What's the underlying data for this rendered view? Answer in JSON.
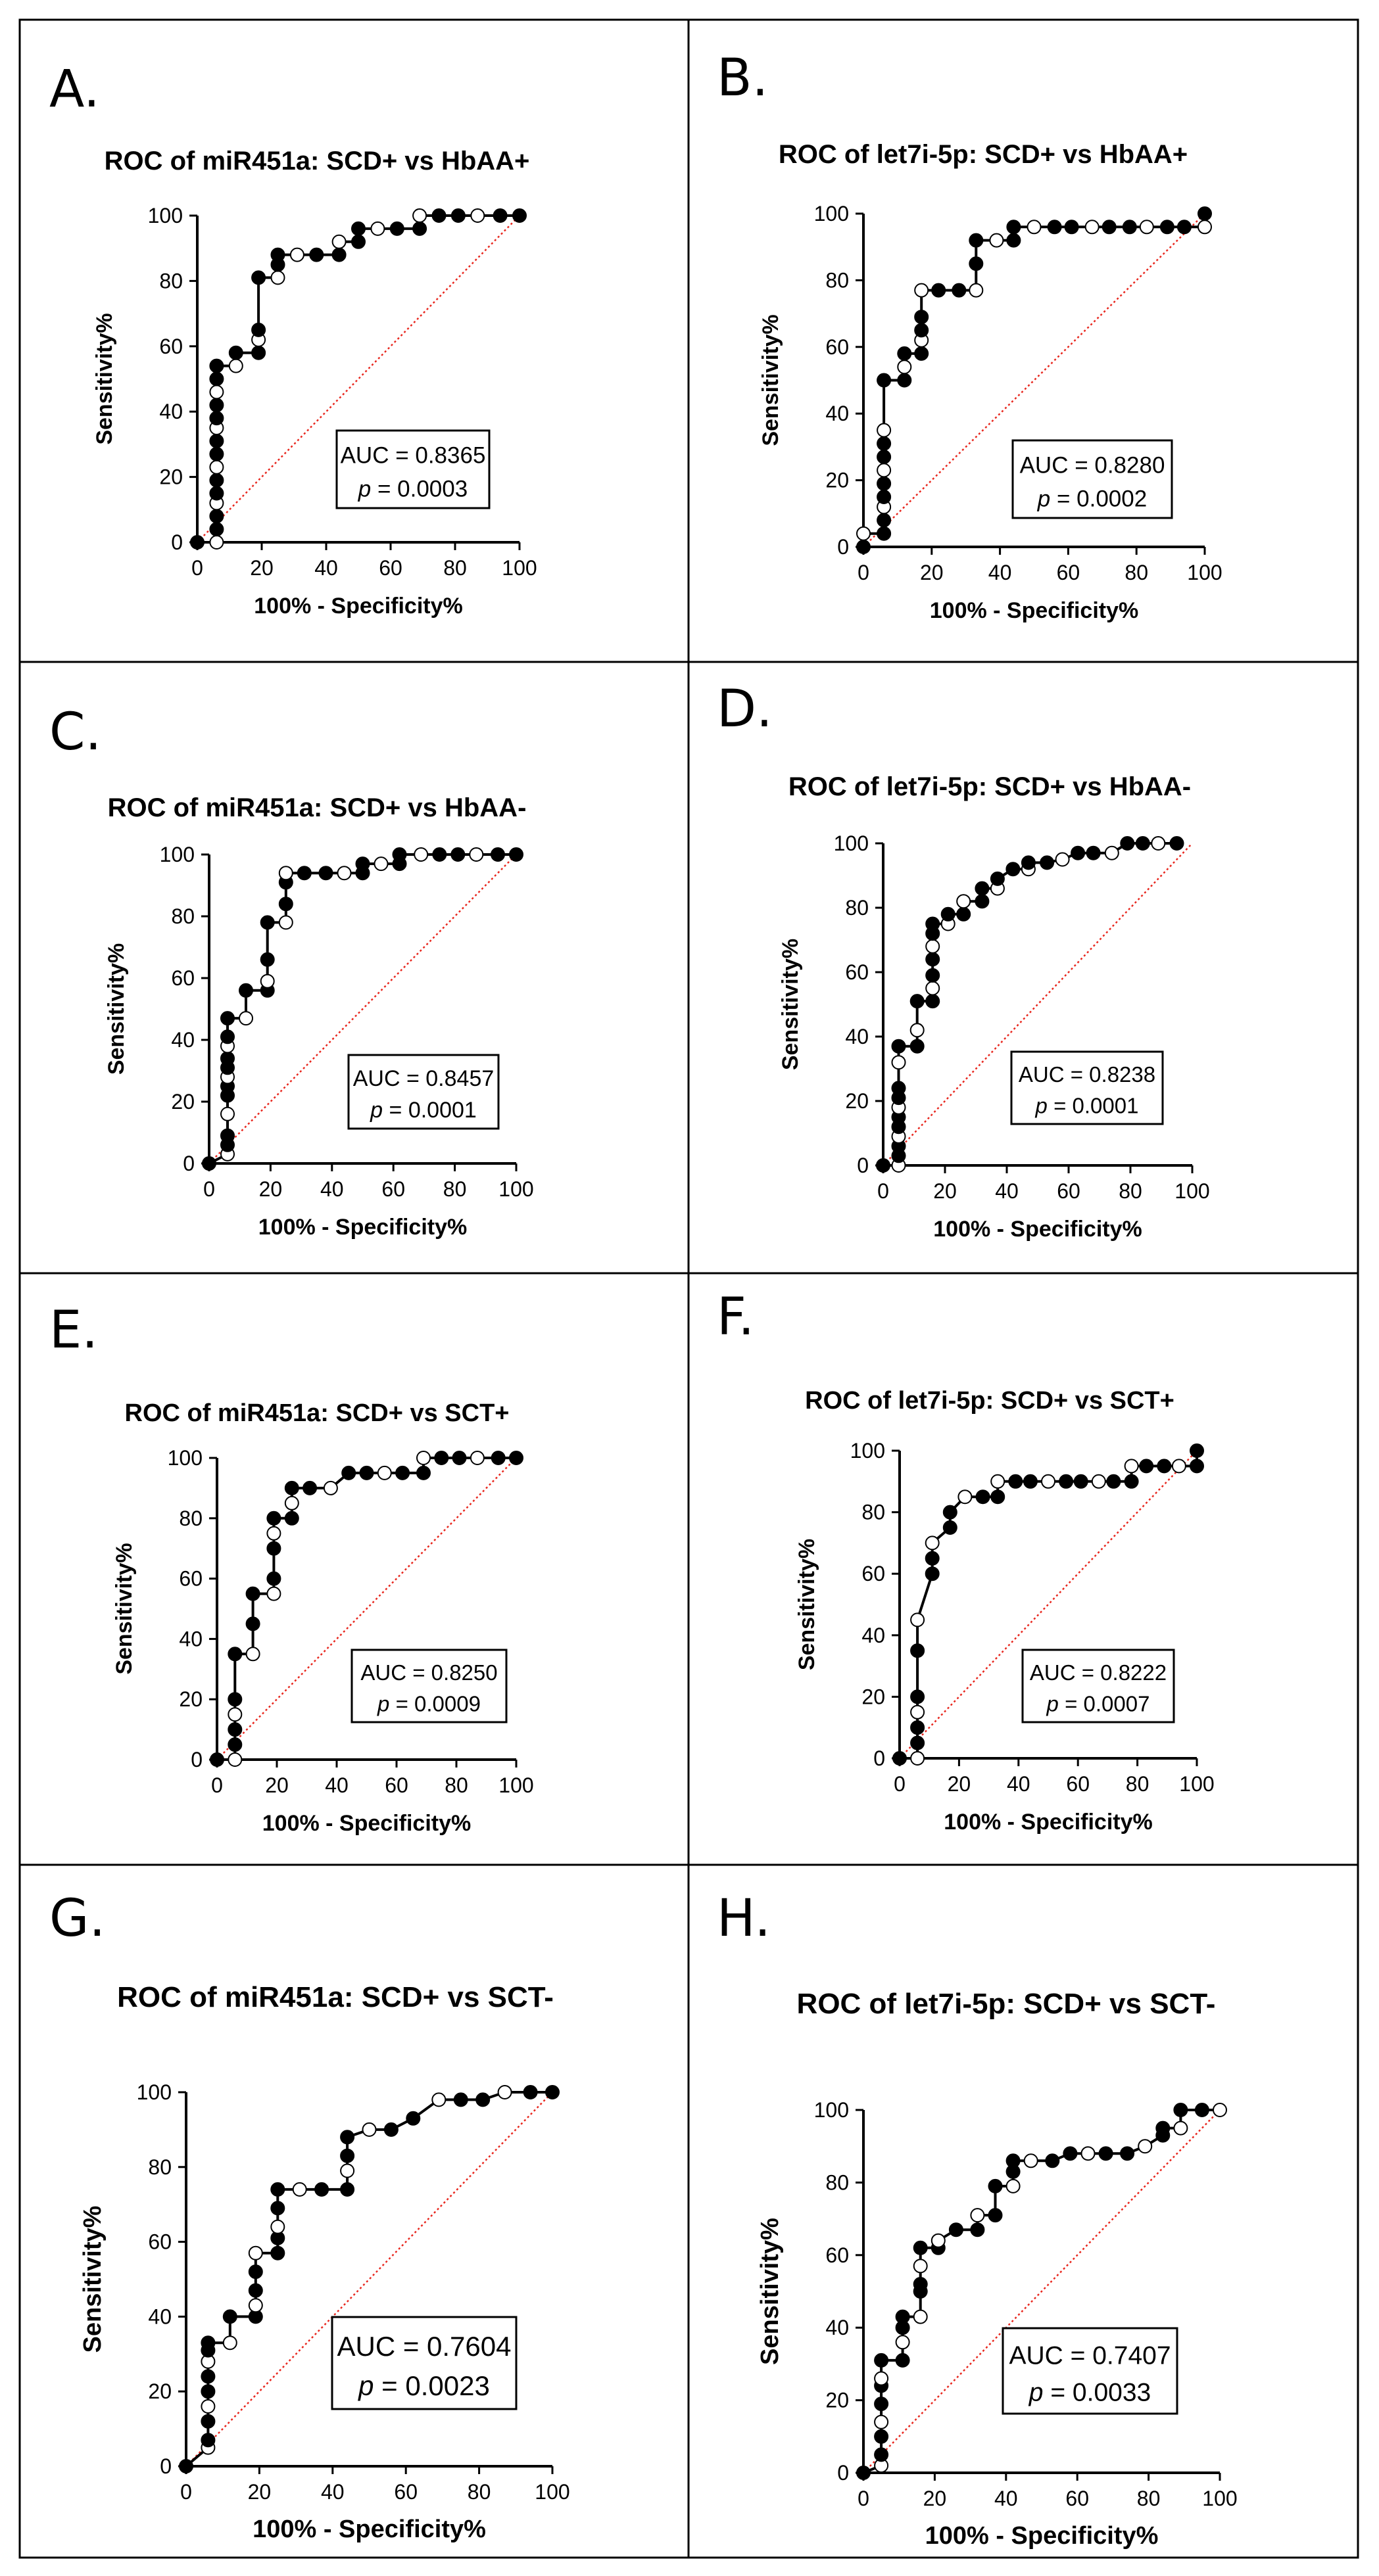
{
  "figure": {
    "x_label": "100% - Specificity%",
    "y_label": "Sensitivity%"
  },
  "chart_data": [
    {
      "type": "line",
      "panel": "A.",
      "title": "ROC of miR451a: SCD+ vs HbAA+",
      "xlabel": "100% - Specificity%",
      "ylabel": "Sensitivity%",
      "xlim": [
        0,
        100
      ],
      "ylim": [
        0,
        100
      ],
      "xticks": [
        0,
        20,
        40,
        60,
        80,
        100
      ],
      "yticks": [
        0,
        20,
        40,
        60,
        80,
        100
      ],
      "auc_text": "AUC = 0.8365",
      "p_label": "p",
      "p_value": "= 0.0003",
      "series": [
        {
          "name": "ROC curve",
          "x": [
            0,
            6,
            6,
            6,
            6,
            6,
            6,
            6,
            6,
            6,
            6,
            6,
            6,
            6,
            6,
            6,
            12,
            12,
            19,
            19,
            19,
            19,
            25,
            25,
            25,
            31,
            37,
            44,
            44,
            50,
            50,
            56,
            62,
            69,
            69,
            75,
            81,
            87,
            94,
            100
          ],
          "y": [
            0,
            0,
            4,
            8,
            12,
            15,
            19,
            23,
            27,
            31,
            35,
            38,
            42,
            46,
            50,
            54,
            54,
            58,
            58,
            62,
            65,
            81,
            81,
            85,
            88,
            88,
            88,
            88,
            92,
            92,
            96,
            96,
            96,
            96,
            100,
            100,
            100,
            100,
            100,
            100
          ]
        },
        {
          "name": "reference",
          "x": [
            0,
            100
          ],
          "y": [
            0,
            100
          ]
        }
      ]
    },
    {
      "type": "line",
      "panel": "B.",
      "title": "ROC of let7i-5p: SCD+ vs HbAA+",
      "xlabel": "100% - Specificity%",
      "ylabel": "Sensitivity%",
      "xlim": [
        0,
        100
      ],
      "ylim": [
        0,
        100
      ],
      "xticks": [
        0,
        20,
        40,
        60,
        80,
        100
      ],
      "yticks": [
        0,
        20,
        40,
        60,
        80,
        100
      ],
      "auc_text": "AUC = 0.8280",
      "p_label": "p",
      "p_value": "= 0.0002",
      "series": [
        {
          "name": "ROC curve",
          "x": [
            0,
            0,
            6,
            6,
            6,
            6,
            6,
            6,
            6,
            6,
            6,
            6,
            12,
            12,
            12,
            17,
            17,
            17,
            17,
            17,
            22,
            28,
            33,
            33,
            33,
            39,
            44,
            44,
            50,
            56,
            61,
            67,
            72,
            78,
            83,
            89,
            94,
            100,
            100
          ],
          "y": [
            0,
            4,
            4,
            8,
            12,
            15,
            19,
            23,
            27,
            31,
            35,
            50,
            50,
            54,
            58,
            58,
            62,
            65,
            69,
            77,
            77,
            77,
            77,
            85,
            92,
            92,
            92,
            96,
            96,
            96,
            96,
            96,
            96,
            96,
            96,
            96,
            96,
            96,
            100
          ]
        },
        {
          "name": "reference",
          "x": [
            0,
            100
          ],
          "y": [
            0,
            100
          ]
        }
      ]
    },
    {
      "type": "line",
      "panel": "C.",
      "title": "ROC of miR451a: SCD+ vs HbAA-",
      "xlabel": "100% - Specificity%",
      "ylabel": "Sensitivity%",
      "xlim": [
        0,
        100
      ],
      "ylim": [
        0,
        100
      ],
      "xticks": [
        0,
        20,
        40,
        60,
        80,
        100
      ],
      "yticks": [
        0,
        20,
        40,
        60,
        80,
        100
      ],
      "auc_text": "AUC = 0.8457",
      "p_label": "p",
      "p_value": "= 0.0001",
      "series": [
        {
          "name": "ROC curve",
          "x": [
            0,
            6,
            6,
            6,
            6,
            6,
            6,
            6,
            6,
            6,
            6,
            6,
            6,
            12,
            12,
            19,
            19,
            19,
            19,
            25,
            25,
            25,
            25,
            31,
            38,
            44,
            50,
            50,
            56,
            62,
            62,
            69,
            75,
            81,
            87,
            94,
            100
          ],
          "y": [
            0,
            3,
            6,
            9,
            16,
            22,
            25,
            28,
            31,
            34,
            38,
            41,
            47,
            47,
            56,
            56,
            59,
            66,
            78,
            78,
            84,
            91,
            94,
            94,
            94,
            94,
            94,
            97,
            97,
            97,
            100,
            100,
            100,
            100,
            100,
            100,
            100
          ]
        },
        {
          "name": "reference",
          "x": [
            0,
            100
          ],
          "y": [
            0,
            100
          ]
        }
      ]
    },
    {
      "type": "line",
      "panel": "D.",
      "title": "ROC of let7i-5p: SCD+ vs HbAA-",
      "xlabel": "100% - Specificity%",
      "ylabel": "Sensitivity%",
      "xlim": [
        0,
        100
      ],
      "ylim": [
        0,
        100
      ],
      "xticks": [
        0,
        20,
        40,
        60,
        80,
        100
      ],
      "yticks": [
        0,
        20,
        40,
        60,
        80,
        100
      ],
      "auc_text": "AUC = 0.8238",
      "p_label": "p",
      "p_value": "= 0.0001",
      "series": [
        {
          "name": "ROC curve",
          "x": [
            0,
            5,
            5,
            5,
            5,
            5,
            5,
            5,
            5,
            5,
            5,
            5,
            11,
            11,
            11,
            16,
            16,
            16,
            16,
            16,
            16,
            16,
            21,
            21,
            26,
            26,
            32,
            32,
            37,
            37,
            42,
            47,
            47,
            53,
            58,
            63,
            68,
            74,
            79,
            84,
            89,
            95
          ],
          "y": [
            0,
            0,
            3,
            6,
            9,
            12,
            15,
            18,
            21,
            24,
            32,
            37,
            37,
            42,
            51,
            51,
            55,
            59,
            64,
            68,
            72,
            75,
            75,
            78,
            78,
            82,
            82,
            86,
            86,
            89,
            92,
            92,
            94,
            94,
            95,
            97,
            97,
            97,
            100,
            100,
            100,
            100
          ]
        },
        {
          "name": "reference",
          "x": [
            0,
            100
          ],
          "y": [
            0,
            100
          ]
        }
      ]
    },
    {
      "type": "line",
      "panel": "E.",
      "title": "ROC of miR451a: SCD+ vs SCT+",
      "xlabel": "100% - Specificity%",
      "ylabel": "Sensitivity%",
      "xlim": [
        0,
        100
      ],
      "ylim": [
        0,
        100
      ],
      "xticks": [
        0,
        20,
        40,
        60,
        80,
        100
      ],
      "yticks": [
        0,
        20,
        40,
        60,
        80,
        100
      ],
      "auc_text": "AUC = 0.8250",
      "p_label": "p",
      "p_value": "= 0.0009",
      "series": [
        {
          "name": "ROC curve",
          "x": [
            0,
            6,
            6,
            6,
            6,
            6,
            6,
            12,
            12,
            12,
            19,
            19,
            19,
            19,
            19,
            25,
            25,
            25,
            31,
            38,
            44,
            50,
            56,
            62,
            69,
            69,
            75,
            81,
            87,
            94,
            100
          ],
          "y": [
            0,
            0,
            5,
            10,
            15,
            20,
            35,
            35,
            45,
            55,
            55,
            60,
            70,
            75,
            80,
            80,
            85,
            90,
            90,
            90,
            95,
            95,
            95,
            95,
            95,
            100,
            100,
            100,
            100,
            100,
            100
          ]
        },
        {
          "name": "reference",
          "x": [
            0,
            100
          ],
          "y": [
            0,
            100
          ]
        }
      ]
    },
    {
      "type": "line",
      "panel": "F.",
      "title": "ROC of let7i-5p: SCD+ vs SCT+",
      "xlabel": "100% - Specificity%",
      "ylabel": "Sensitivity%",
      "xlim": [
        0,
        100
      ],
      "ylim": [
        0,
        100
      ],
      "xticks": [
        0,
        20,
        40,
        60,
        80,
        100
      ],
      "yticks": [
        0,
        20,
        40,
        60,
        80,
        100
      ],
      "auc_text": "AUC = 0.8222",
      "p_label": "p",
      "p_value": "= 0.0007",
      "series": [
        {
          "name": "ROC curve",
          "x": [
            0,
            6,
            6,
            6,
            6,
            6,
            6,
            6,
            11,
            11,
            11,
            17,
            17,
            22,
            28,
            33,
            33,
            39,
            44,
            50,
            56,
            61,
            67,
            72,
            78,
            78,
            83,
            89,
            94,
            100,
            100
          ],
          "y": [
            0,
            0,
            5,
            10,
            15,
            20,
            35,
            45,
            60,
            65,
            70,
            75,
            80,
            85,
            85,
            85,
            90,
            90,
            90,
            90,
            90,
            90,
            90,
            90,
            90,
            95,
            95,
            95,
            95,
            95,
            100
          ]
        },
        {
          "name": "reference",
          "x": [
            0,
            100
          ],
          "y": [
            0,
            100
          ]
        }
      ]
    },
    {
      "type": "line",
      "panel": "G.",
      "title": "ROC of miR451a: SCD+ vs SCT-",
      "xlabel": "100% - Specificity%",
      "ylabel": "Sensitivity%",
      "xlim": [
        0,
        100
      ],
      "ylim": [
        0,
        100
      ],
      "xticks": [
        0,
        20,
        40,
        60,
        80,
        100
      ],
      "yticks": [
        0,
        20,
        40,
        60,
        80,
        100
      ],
      "auc_text": "AUC = 0.7604",
      "p_label": "p",
      "p_value": "= 0.0023",
      "series": [
        {
          "name": "ROC curve",
          "x": [
            0,
            6,
            6,
            6,
            6,
            6,
            6,
            6,
            6,
            6,
            12,
            12,
            19,
            19,
            19,
            19,
            19,
            25,
            25,
            25,
            25,
            25,
            31,
            37,
            44,
            44,
            44,
            44,
            50,
            56,
            62,
            69,
            75,
            81,
            87,
            94,
            100
          ],
          "y": [
            0,
            5,
            7,
            12,
            16,
            20,
            24,
            28,
            31,
            33,
            33,
            40,
            40,
            43,
            47,
            52,
            57,
            57,
            61,
            64,
            69,
            74,
            74,
            74,
            74,
            79,
            83,
            88,
            90,
            90,
            93,
            98,
            98,
            98,
            100,
            100,
            100
          ]
        },
        {
          "name": "reference",
          "x": [
            0,
            100
          ],
          "y": [
            0,
            100
          ]
        }
      ]
    },
    {
      "type": "line",
      "panel": "H.",
      "title": "ROC of let7i-5p: SCD+ vs SCT-",
      "xlabel": "100% - Specificity%",
      "ylabel": "Sensitivity%",
      "xlim": [
        0,
        100
      ],
      "ylim": [
        0,
        100
      ],
      "xticks": [
        0,
        20,
        40,
        60,
        80,
        100
      ],
      "yticks": [
        0,
        20,
        40,
        60,
        80,
        100
      ],
      "auc_text": "AUC = 0.7407",
      "p_label": "p",
      "p_value": "= 0.0033",
      "series": [
        {
          "name": "ROC curve",
          "x": [
            0,
            5,
            5,
            5,
            5,
            5,
            5,
            5,
            5,
            11,
            11,
            11,
            11,
            16,
            16,
            16,
            16,
            16,
            21,
            21,
            26,
            32,
            32,
            37,
            37,
            42,
            42,
            42,
            47,
            53,
            58,
            63,
            68,
            74,
            79,
            84,
            84,
            89,
            89,
            95,
            100
          ],
          "y": [
            0,
            2,
            5,
            10,
            14,
            19,
            24,
            26,
            31,
            31,
            36,
            40,
            43,
            43,
            50,
            52,
            57,
            62,
            62,
            64,
            67,
            67,
            71,
            71,
            79,
            79,
            83,
            86,
            86,
            86,
            88,
            88,
            88,
            88,
            90,
            93,
            95,
            95,
            100,
            100,
            100
          ]
        },
        {
          "name": "reference",
          "x": [
            0,
            100
          ],
          "y": [
            0,
            100
          ]
        }
      ]
    }
  ]
}
